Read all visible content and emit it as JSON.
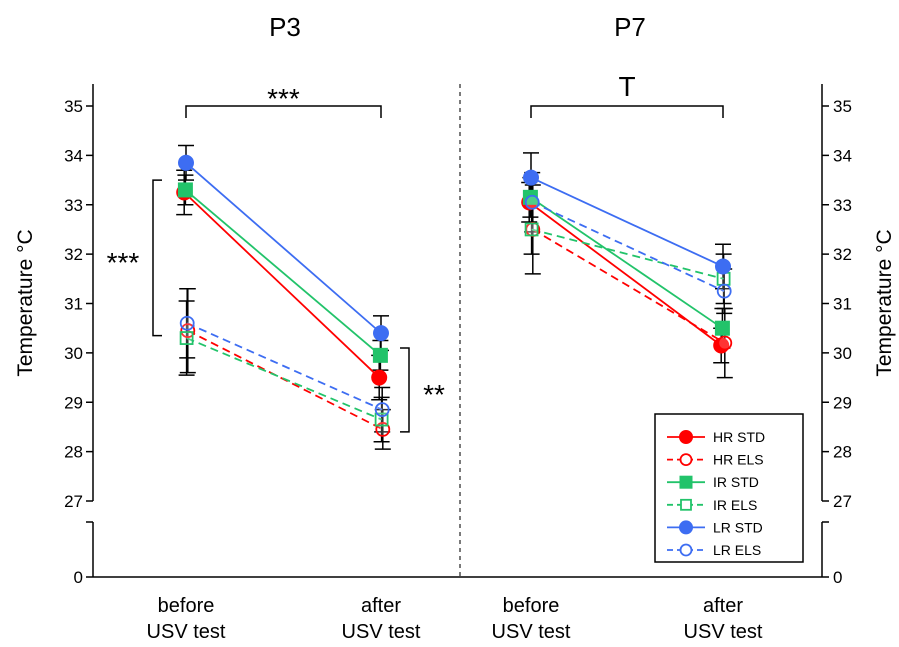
{
  "chart_data": {
    "type": "line",
    "ylabel": "Temperature °C",
    "y_ticks": [
      27,
      28,
      29,
      30,
      31,
      32,
      33,
      34,
      35
    ],
    "y_zero_label": "0",
    "ylim": [
      27,
      35.4
    ],
    "broken_axis": true,
    "categories": [
      "before\nUSV test",
      "after\nUSV test"
    ],
    "category_lines": [
      [
        "before",
        "USV test"
      ],
      [
        "after",
        "USV test"
      ]
    ],
    "panels": [
      {
        "title": "P3",
        "series": [
          {
            "name": "HR STD",
            "color": "#ff0000",
            "marker": "circle",
            "filled": true,
            "dashed": false,
            "values": [
              33.25,
              29.5
            ],
            "errors": [
              0.45,
              0.45
            ]
          },
          {
            "name": "HR ELS",
            "color": "#ff0000",
            "marker": "circle",
            "filled": false,
            "dashed": true,
            "values": [
              30.45,
              28.45
            ],
            "errors": [
              0.85,
              0.4
            ]
          },
          {
            "name": "IR STD",
            "color": "#22c36a",
            "marker": "square",
            "filled": true,
            "dashed": false,
            "values": [
              33.3,
              29.95
            ],
            "errors": [
              0.3,
              0.3
            ]
          },
          {
            "name": "IR ELS",
            "color": "#22c36a",
            "marker": "square",
            "filled": false,
            "dashed": true,
            "values": [
              30.3,
              28.65
            ],
            "errors": [
              0.75,
              0.45
            ]
          },
          {
            "name": "LR STD",
            "color": "#3d6df2",
            "marker": "circle",
            "filled": true,
            "dashed": false,
            "values": [
              33.85,
              30.4
            ],
            "errors": [
              0.35,
              0.35
            ]
          },
          {
            "name": "LR ELS",
            "color": "#3d6df2",
            "marker": "circle",
            "filled": false,
            "dashed": true,
            "values": [
              30.6,
              28.85
            ],
            "errors": [
              0.7,
              0.45
            ]
          }
        ],
        "brackets": [
          {
            "type": "horizontal",
            "label": "***",
            "level": 35.0
          },
          {
            "type": "vertical",
            "label": "***",
            "category": 0,
            "from": 30.35,
            "to": 33.5
          },
          {
            "type": "vertical",
            "label": "**",
            "category": 1,
            "from": 28.4,
            "to": 30.1
          }
        ]
      },
      {
        "title": "P7",
        "series": [
          {
            "name": "HR STD",
            "color": "#ff0000",
            "marker": "circle",
            "filled": true,
            "dashed": false,
            "values": [
              33.05,
              30.15
            ],
            "errors": [
              0.4,
              0.35
            ]
          },
          {
            "name": "HR ELS",
            "color": "#ff0000",
            "marker": "circle",
            "filled": false,
            "dashed": true,
            "values": [
              32.5,
              30.2
            ],
            "errors": [
              0.9,
              0.7
            ]
          },
          {
            "name": "IR STD",
            "color": "#22c36a",
            "marker": "square",
            "filled": true,
            "dashed": false,
            "values": [
              33.15,
              30.5
            ],
            "errors": [
              0.4,
              0.4
            ]
          },
          {
            "name": "IR ELS",
            "color": "#22c36a",
            "marker": "square",
            "filled": false,
            "dashed": true,
            "values": [
              32.5,
              31.5
            ],
            "errors": [
              0.5,
              0.5
            ]
          },
          {
            "name": "LR STD",
            "color": "#3d6df2",
            "marker": "circle",
            "filled": true,
            "dashed": false,
            "values": [
              33.55,
              31.75
            ],
            "errors": [
              0.5,
              0.45
            ]
          },
          {
            "name": "LR ELS",
            "color": "#3d6df2",
            "marker": "circle",
            "filled": false,
            "dashed": true,
            "values": [
              33.05,
              31.25
            ],
            "errors": [
              0.6,
              0.45
            ]
          }
        ],
        "brackets": [
          {
            "type": "horizontal",
            "label": "T",
            "level": 35.0
          }
        ]
      }
    ],
    "legend": {
      "placement": "bottom-right",
      "entries": [
        "HR STD",
        "HR ELS",
        "IR STD",
        "IR ELS",
        "LR STD",
        "LR ELS"
      ]
    }
  }
}
